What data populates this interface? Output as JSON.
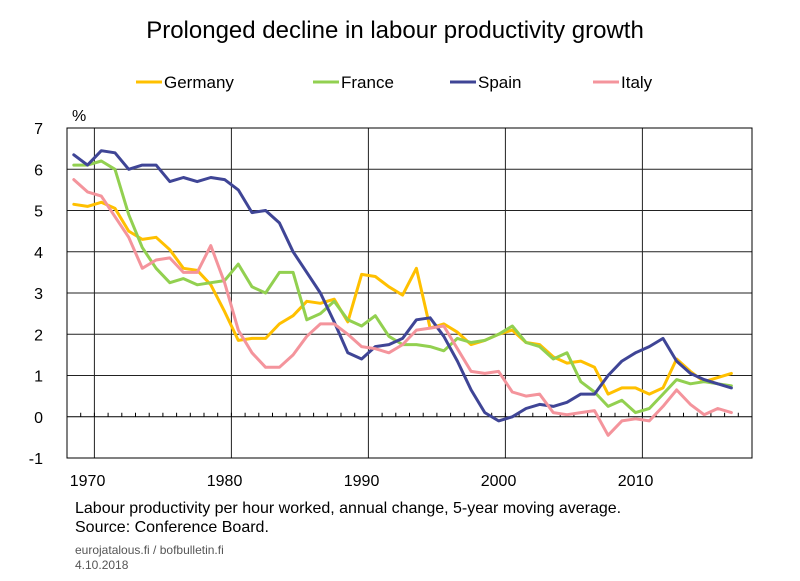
{
  "chart_data": {
    "type": "line",
    "title": "Prolonged decline in labour productivity growth",
    "ylabel": "%",
    "xlabel": "",
    "xlim": [
      1968.5,
      2018.5
    ],
    "ylim": [
      -1,
      7
    ],
    "y_ticks": [
      "-1",
      "0",
      "1",
      "2",
      "3",
      "4",
      "5",
      "6",
      "7"
    ],
    "x_ticks": [
      {
        "x": 1970,
        "label": "1970"
      },
      {
        "x": 1980,
        "label": "1980"
      },
      {
        "x": 1990,
        "label": "1990"
      },
      {
        "x": 2000,
        "label": "2000"
      },
      {
        "x": 2010,
        "label": "2010"
      }
    ],
    "grid": true,
    "legend_position": "top",
    "x": [
      1969,
      1970,
      1971,
      1972,
      1973,
      1974,
      1975,
      1976,
      1977,
      1978,
      1979,
      1980,
      1981,
      1982,
      1983,
      1984,
      1985,
      1986,
      1987,
      1988,
      1989,
      1990,
      1991,
      1992,
      1993,
      1994,
      1995,
      1996,
      1997,
      1998,
      1999,
      2000,
      2001,
      2002,
      2003,
      2004,
      2005,
      2006,
      2007,
      2008,
      2009,
      2010,
      2011,
      2012,
      2013,
      2014,
      2015,
      2016,
      2017
    ],
    "series": [
      {
        "name": "Germany",
        "color": "#FFC000",
        "values": [
          5.15,
          5.1,
          5.2,
          5.05,
          4.5,
          4.3,
          4.35,
          4.05,
          3.6,
          3.55,
          3.2,
          2.55,
          1.85,
          1.9,
          1.9,
          2.25,
          2.45,
          2.8,
          2.75,
          2.85,
          2.3,
          3.45,
          3.4,
          3.15,
          2.95,
          3.6,
          2.15,
          2.25,
          2.05,
          1.75,
          1.85,
          2.0,
          2.1,
          1.8,
          1.75,
          1.45,
          1.3,
          1.35,
          1.2,
          0.55,
          0.7,
          0.7,
          0.55,
          0.7,
          1.4,
          1.1,
          0.85,
          0.95,
          1.05
        ]
      },
      {
        "name": "France",
        "color": "#92D050",
        "values": [
          6.1,
          6.1,
          6.2,
          6.0,
          4.9,
          4.1,
          3.6,
          3.25,
          3.35,
          3.2,
          3.25,
          3.3,
          3.7,
          3.15,
          3.0,
          3.5,
          3.5,
          2.35,
          2.5,
          2.8,
          2.35,
          2.2,
          2.45,
          1.95,
          1.75,
          1.75,
          1.7,
          1.6,
          1.9,
          1.8,
          1.85,
          2.0,
          2.2,
          1.8,
          1.7,
          1.4,
          1.55,
          0.85,
          0.6,
          0.25,
          0.4,
          0.1,
          0.2,
          0.55,
          0.9,
          0.8,
          0.85,
          0.8,
          0.75
        ]
      },
      {
        "name": "Spain",
        "color": "#3F4596",
        "values": [
          6.35,
          6.1,
          6.45,
          6.4,
          6.0,
          6.1,
          6.1,
          5.7,
          5.8,
          5.7,
          5.8,
          5.75,
          5.5,
          4.95,
          5.0,
          4.7,
          4.0,
          3.5,
          3.0,
          2.3,
          1.55,
          1.4,
          1.7,
          1.75,
          1.9,
          2.35,
          2.4,
          1.95,
          1.35,
          0.65,
          0.1,
          -0.1,
          0.0,
          0.2,
          0.3,
          0.25,
          0.35,
          0.55,
          0.55,
          1.0,
          1.35,
          1.55,
          1.7,
          1.9,
          1.35,
          1.05,
          0.9,
          0.8,
          0.7
        ]
      },
      {
        "name": "Italy",
        "color": "#F4949C",
        "values": [
          5.75,
          5.45,
          5.35,
          4.85,
          4.35,
          3.6,
          3.8,
          3.85,
          3.5,
          3.5,
          4.15,
          3.25,
          2.1,
          1.55,
          1.2,
          1.2,
          1.5,
          1.95,
          2.25,
          2.25,
          2.0,
          1.7,
          1.65,
          1.55,
          1.75,
          2.1,
          2.15,
          2.2,
          1.65,
          1.1,
          1.05,
          1.1,
          0.6,
          0.5,
          0.55,
          0.1,
          0.05,
          0.1,
          0.15,
          -0.45,
          -0.1,
          -0.05,
          -0.1,
          0.25,
          0.65,
          0.3,
          0.05,
          0.2,
          0.1
        ]
      }
    ]
  },
  "footnote": {
    "line1": "Labour productivity per hour worked, annual change, 5-year moving average.",
    "line2": "Source: Conference Board."
  },
  "credit": {
    "site": "eurojatalous.fi  / bofbulletin.fi",
    "date": "4.10.2018"
  }
}
